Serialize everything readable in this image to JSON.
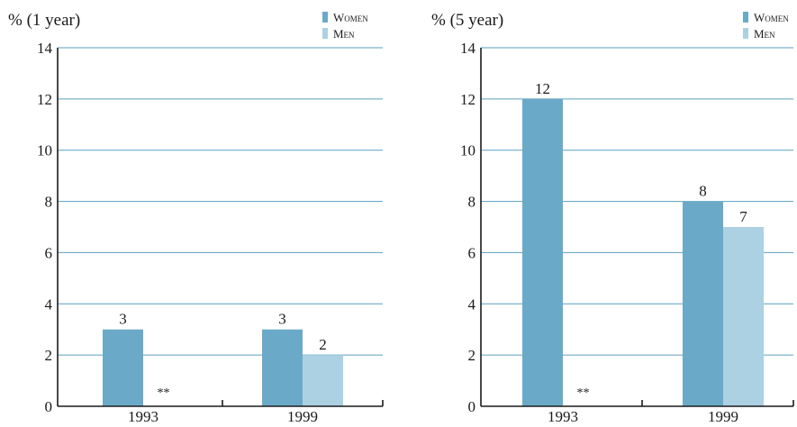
{
  "colors": {
    "women": "#6aaac8",
    "men": "#acd1e2",
    "grid": "#5b9fc0",
    "axis": "#1a1a1a"
  },
  "chart_data": [
    {
      "type": "bar",
      "ylabel": "% (1 year)",
      "categories": [
        "1993",
        "1999"
      ],
      "ylim": [
        0,
        14
      ],
      "yticks": [
        0,
        2,
        4,
        6,
        8,
        10,
        12,
        14
      ],
      "grid": true,
      "legend_position": "top-right",
      "series": [
        {
          "name": "Women",
          "values": [
            3,
            3
          ],
          "labels": [
            "3",
            "3"
          ]
        },
        {
          "name": "Men",
          "values": [
            null,
            2
          ],
          "labels": [
            "**",
            "2"
          ]
        }
      ]
    },
    {
      "type": "bar",
      "ylabel": "% (5 year)",
      "categories": [
        "1993",
        "1999"
      ],
      "ylim": [
        0,
        14
      ],
      "yticks": [
        0,
        2,
        4,
        6,
        8,
        10,
        12,
        14
      ],
      "grid": true,
      "legend_position": "top-right",
      "series": [
        {
          "name": "Women",
          "values": [
            12,
            8
          ],
          "labels": [
            "12",
            "8"
          ]
        },
        {
          "name": "Men",
          "values": [
            null,
            7
          ],
          "labels": [
            "**",
            "7"
          ]
        }
      ]
    }
  ]
}
